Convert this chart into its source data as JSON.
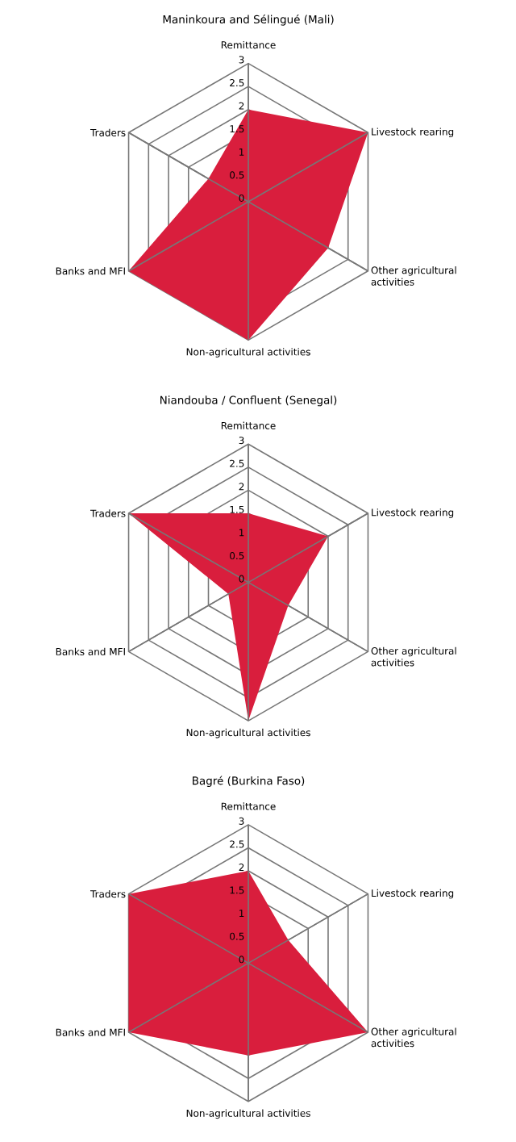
{
  "chart_data": [
    {
      "type": "radar",
      "title": "Maninkoura and Sélingué (Mali)",
      "categories": [
        "Remittance",
        "Livestock rearing",
        "Other agricultural activities",
        "Non-agricultural activities",
        "Banks and MFI",
        "Traders"
      ],
      "series": [
        {
          "color": "#d91e3d",
          "values": [
            2,
            3,
            2,
            3,
            3,
            1
          ]
        }
      ],
      "ylim": [
        0,
        3
      ],
      "yticks": [
        0,
        0.5,
        1,
        1.5,
        2,
        2.5,
        3
      ],
      "grid": true
    },
    {
      "type": "radar",
      "title": "Niandouba / Confluent (Senegal)",
      "categories": [
        "Remittance",
        "Livestock rearing",
        "Other agricultural activities",
        "Non-agricultural activities",
        "Banks and MFI",
        "Traders"
      ],
      "series": [
        {
          "color": "#d91e3d",
          "values": [
            1.5,
            2,
            1,
            3,
            0.5,
            3
          ]
        }
      ],
      "ylim": [
        0,
        3
      ],
      "yticks": [
        0,
        0.5,
        1,
        1.5,
        2,
        2.5,
        3
      ],
      "grid": true
    },
    {
      "type": "radar",
      "title": "Bagré (Burkina Faso)",
      "categories": [
        "Remittance",
        "Livestock rearing",
        "Other agricultural activities",
        "Non-agricultural activities",
        "Banks and MFI",
        "Traders"
      ],
      "series": [
        {
          "color": "#d91e3d",
          "values": [
            2,
            1,
            3,
            2,
            3,
            3
          ]
        }
      ],
      "ylim": [
        0,
        3
      ],
      "yticks": [
        0,
        0.5,
        1,
        1.5,
        2,
        2.5,
        3
      ],
      "grid": true
    }
  ]
}
